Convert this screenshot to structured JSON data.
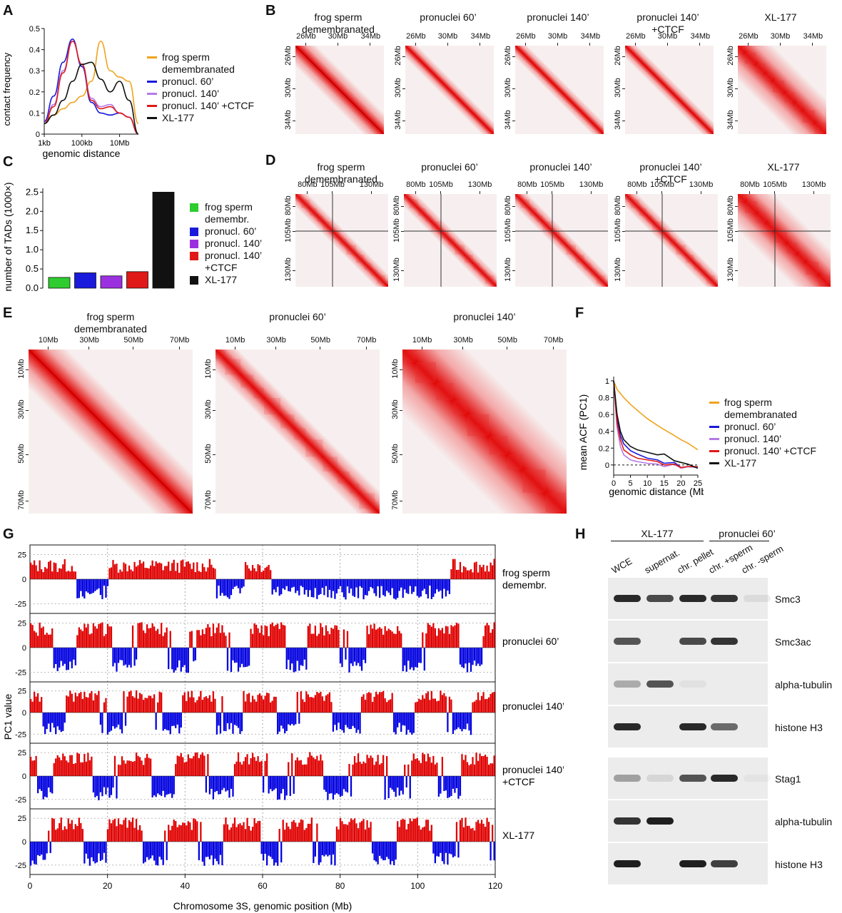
{
  "panels": {
    "A": "A",
    "B": "B",
    "C": "C",
    "D": "D",
    "E": "E",
    "F": "F",
    "G": "G",
    "H": "H"
  },
  "series_colors": {
    "frog_sperm": "#f0a31c",
    "pronucl60": "#1a1adc",
    "pronucl140": "#b57ae6",
    "pronucl140ctcf": "#e01818",
    "xl177": "#111111"
  },
  "panelA": {
    "ylabel": "contact frequency",
    "xlabel": "genomic distance",
    "yticks": [
      "0",
      "0.1",
      "0.2",
      "0.3",
      "0.4",
      "0.5"
    ],
    "xticks": [
      "1kb",
      "100kb",
      "10Mb"
    ],
    "legend": [
      "frog sperm",
      "demembranated",
      "pronucl. 60’",
      "pronucl. 140’",
      "pronucl. 140’ +CTCF",
      "XL-177"
    ]
  },
  "panelB": {
    "titles": [
      [
        "frog sperm",
        "demembranated"
      ],
      [
        "pronuclei 60’",
        ""
      ],
      [
        "pronuclei 140’",
        ""
      ],
      [
        "pronuclei 140’",
        "+CTCF"
      ],
      [
        "XL-177",
        ""
      ]
    ],
    "ticks": [
      "26Mb",
      "30Mb",
      "34Mb"
    ]
  },
  "panelC": {
    "ylabel": "number of TADs (1000×)",
    "yticks": [
      "0.0",
      "0.5",
      "1.0",
      "1.5",
      "2.0",
      "2.5"
    ],
    "legend": [
      "frog sperm",
      "demembr.",
      "pronucl. 60’",
      "pronucl. 140’",
      "pronucl. 140’",
      "+CTCF",
      "XL-177"
    ]
  },
  "panelD": {
    "titles": [
      [
        "frog sperm",
        "demembranated"
      ],
      [
        "pronuclei 60’",
        ""
      ],
      [
        "pronuclei 140’",
        ""
      ],
      [
        "pronuclei 140’",
        "+CTCF"
      ],
      [
        "XL-177",
        ""
      ]
    ],
    "ticks": [
      "80Mb",
      "105Mb",
      "130Mb"
    ]
  },
  "panelE": {
    "titles": [
      [
        "frog sperm",
        "demembranated"
      ],
      [
        "pronuclei 60’",
        ""
      ],
      [
        "pronuclei 140’",
        ""
      ]
    ],
    "ticks": [
      "10Mb",
      "30Mb",
      "50Mb",
      "70Mb"
    ]
  },
  "panelF": {
    "ylabel": "mean ACF (PC1)",
    "xlabel": "genomic distance (Mb)",
    "yticks": [
      "0",
      "0.2",
      "0.4",
      "0.6",
      "0.8",
      "1"
    ],
    "xticks": [
      "0",
      "5",
      "10",
      "15",
      "20",
      "25"
    ],
    "legend": [
      "frog sperm",
      "demembranated",
      "pronucl. 60’",
      "pronucl. 140’",
      "pronucl. 140’ +CTCF",
      "XL-177"
    ]
  },
  "panelG": {
    "ylabel": "PC1 value",
    "xlabel": "Chromosome 3S, genomic position (Mb)",
    "yticks": [
      "25",
      "0",
      "-25"
    ],
    "xticks": [
      "0",
      "20",
      "40",
      "60",
      "80",
      "100",
      "120"
    ],
    "tracks": [
      [
        "frog sperm",
        "demembr."
      ],
      [
        "pronuclei 60’",
        ""
      ],
      [
        "pronuclei 140’",
        ""
      ],
      [
        "pronuclei 140’",
        "+CTCF"
      ],
      [
        "XL-177",
        ""
      ]
    ]
  },
  "panelH": {
    "group1": "XL-177",
    "group2": "pronuclei 60’",
    "lanes": [
      "WCE",
      "supernat.",
      "chr. pellet",
      "chr. +sperm",
      "chr. -sperm"
    ],
    "blots1": [
      "Smc3",
      "Smc3ac",
      "alpha-tubulin",
      "histone H3"
    ],
    "blots2": [
      "Stag1",
      "alpha-tubulin",
      "histone H3"
    ]
  },
  "chart_data": [
    {
      "type": "line",
      "title": "",
      "xlabel": "genomic distance",
      "ylabel": "contact frequency",
      "ylim": [
        0,
        0.5
      ],
      "xlim_log10": [
        3,
        8
      ],
      "x_log10": [
        3,
        3.5,
        4,
        4.5,
        5,
        5.5,
        6,
        6.5,
        7,
        7.5,
        8
      ],
      "series": [
        {
          "name": "frog sperm demembranated",
          "values": [
            0.06,
            0.09,
            0.12,
            0.15,
            0.18,
            0.25,
            0.44,
            0.3,
            0.27,
            0.25,
            0.05
          ]
        },
        {
          "name": "pronucl. 60’",
          "values": [
            0.06,
            0.18,
            0.34,
            0.45,
            0.32,
            0.15,
            0.1,
            0.09,
            0.1,
            0.08,
            0.0
          ]
        },
        {
          "name": "pronucl. 140’",
          "values": [
            0.05,
            0.14,
            0.3,
            0.44,
            0.33,
            0.17,
            0.13,
            0.14,
            0.1,
            0.08,
            0.0
          ]
        },
        {
          "name": "pronucl. 140’ +CTCF",
          "values": [
            0.05,
            0.13,
            0.29,
            0.44,
            0.33,
            0.16,
            0.12,
            0.13,
            0.1,
            0.08,
            0.0
          ]
        },
        {
          "name": "XL-177",
          "values": [
            0.05,
            0.09,
            0.16,
            0.25,
            0.33,
            0.34,
            0.26,
            0.2,
            0.25,
            0.16,
            0.0
          ]
        }
      ]
    },
    {
      "type": "bar",
      "title": "",
      "ylabel": "number of TADs (1000×)",
      "ylim": [
        0,
        2.6
      ],
      "categories": [
        "frog sperm demembr.",
        "pronucl. 60’",
        "pronucl. 140’",
        "pronucl. 140’ +CTCF",
        "XL-177"
      ],
      "values": [
        0.28,
        0.4,
        0.32,
        0.43,
        2.5
      ]
    },
    {
      "type": "line",
      "title": "",
      "xlabel": "genomic distance (Mb)",
      "ylabel": "mean ACF (PC1)",
      "ylim": [
        -0.05,
        1
      ],
      "xlim": [
        0,
        25
      ],
      "x": [
        0,
        1,
        2,
        3,
        5,
        7,
        10,
        13,
        15,
        18,
        20,
        22,
        25
      ],
      "series": [
        {
          "name": "frog sperm demembranated",
          "values": [
            1.0,
            0.9,
            0.85,
            0.8,
            0.72,
            0.65,
            0.55,
            0.47,
            0.42,
            0.35,
            0.3,
            0.26,
            0.18
          ]
        },
        {
          "name": "pronucl. 60’",
          "values": [
            1.0,
            0.55,
            0.35,
            0.25,
            0.17,
            0.13,
            0.08,
            0.06,
            0.02,
            0.03,
            -0.03,
            -0.02,
            -0.03
          ]
        },
        {
          "name": "pronucl. 140’",
          "values": [
            1.0,
            0.45,
            0.22,
            0.12,
            0.06,
            0.04,
            0.02,
            0.01,
            -0.02,
            0.01,
            -0.04,
            -0.02,
            -0.03
          ]
        },
        {
          "name": "pronucl. 140’ +CTCF",
          "values": [
            1.0,
            0.5,
            0.3,
            0.18,
            0.12,
            0.08,
            0.06,
            0.04,
            0.0,
            0.01,
            -0.03,
            -0.02,
            -0.02
          ]
        },
        {
          "name": "XL-177",
          "values": [
            1.0,
            0.6,
            0.4,
            0.3,
            0.22,
            0.18,
            0.15,
            0.12,
            0.13,
            0.05,
            0.03,
            0.01,
            -0.04
          ]
        }
      ]
    }
  ]
}
